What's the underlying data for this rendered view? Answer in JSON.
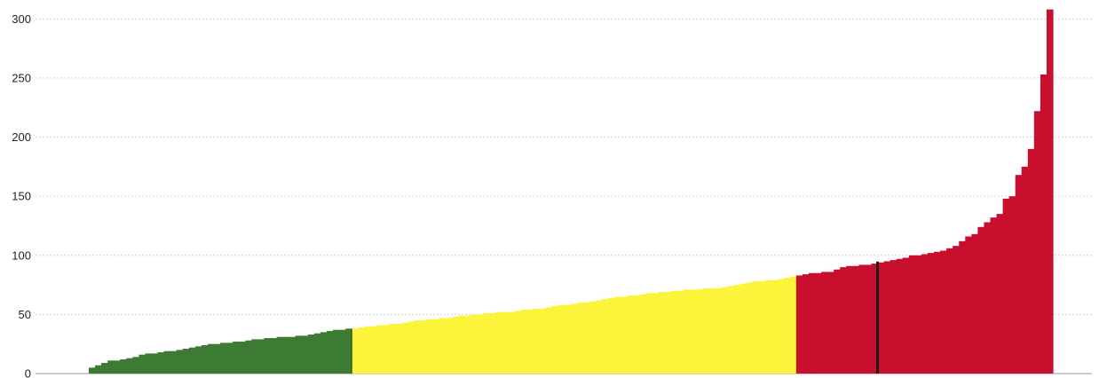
{
  "chart_data": {
    "type": "bar",
    "title": "",
    "xlabel": "",
    "ylabel": "",
    "ylim": [
      0,
      310
    ],
    "yticks": [
      0,
      50,
      100,
      150,
      200,
      250,
      300
    ],
    "grid": true,
    "legend": "none",
    "colors": {
      "green": "#3d7a33",
      "yellow": "#fcf33b",
      "red": "#c8102e",
      "marker": "#1a1a1a",
      "grid": "#d6d6d6",
      "axis": "#9a9a9a"
    },
    "note_categories": "Unlabeled x-axis; bars sorted ascending, colored by band (green, yellow, red). A black vertical marker sits among the red bars.",
    "series": [
      {
        "color_key": "green",
        "values": [
          5,
          7,
          9,
          11,
          11,
          12,
          13,
          14,
          16,
          17,
          17,
          18,
          19,
          19,
          20,
          21,
          22,
          23,
          24,
          25,
          25,
          26,
          26,
          27,
          27,
          28,
          29,
          29,
          30,
          30,
          31,
          31,
          31,
          32,
          32,
          33,
          34,
          35,
          36,
          37,
          37,
          38
        ]
      },
      {
        "color_key": "yellow",
        "values": [
          38,
          39,
          40,
          40,
          41,
          41,
          42,
          42,
          43,
          44,
          45,
          45,
          46,
          46,
          47,
          47,
          48,
          49,
          49,
          50,
          50,
          51,
          51,
          52,
          52,
          52,
          53,
          54,
          54,
          55,
          55,
          56,
          57,
          58,
          58,
          59,
          60,
          60,
          61,
          62,
          63,
          64,
          65,
          65,
          66,
          66,
          67,
          68,
          68,
          69,
          69,
          70,
          70,
          71,
          71,
          71,
          72,
          72,
          72,
          73,
          74,
          75,
          76,
          77,
          78,
          78,
          79,
          79,
          80,
          81,
          82
        ]
      },
      {
        "color_key": "red",
        "values": [
          83,
          84,
          85,
          85,
          86,
          86,
          88,
          90,
          91,
          91,
          92,
          92,
          93,
          94,
          95,
          96,
          97,
          98,
          100,
          100,
          101,
          102,
          103,
          104,
          106,
          108,
          112,
          116,
          118,
          124,
          128,
          132,
          135,
          148,
          150,
          168,
          175,
          190,
          222,
          253,
          308
        ]
      }
    ],
    "marker_after_value_index": 13
  }
}
